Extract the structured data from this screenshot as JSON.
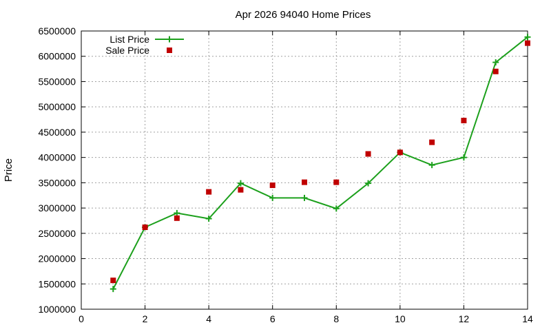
{
  "chart_data": {
    "type": "line",
    "title": "Apr 2026 94040 Home Prices",
    "xlabel": "",
    "ylabel": "Price",
    "xlim": [
      0,
      14
    ],
    "ylim": [
      1000000,
      6500000
    ],
    "x_ticks": [
      0,
      2,
      4,
      6,
      8,
      10,
      12,
      14
    ],
    "y_ticks": [
      1000000,
      1500000,
      2000000,
      2500000,
      3000000,
      3500000,
      4000000,
      4500000,
      5000000,
      5500000,
      6000000,
      6500000
    ],
    "grid": true,
    "legend_position": "top-left",
    "series": [
      {
        "name": "List Price",
        "style": "lines+points",
        "marker": "plus",
        "color": "#1ca01c",
        "x": [
          1,
          2,
          3,
          4,
          5,
          6,
          7,
          8,
          9,
          10,
          11,
          12,
          13,
          14
        ],
        "values": [
          1400000,
          2620000,
          2900000,
          2790000,
          3490000,
          3200000,
          3200000,
          2990000,
          3490000,
          4100000,
          3850000,
          4000000,
          5880000,
          6380000
        ]
      },
      {
        "name": "Sale Price",
        "style": "points",
        "marker": "square",
        "color": "#c00000",
        "x": [
          1,
          2,
          3,
          4,
          5,
          6,
          7,
          8,
          9,
          10,
          11,
          12,
          13,
          14
        ],
        "values": [
          1570000,
          2620000,
          2800000,
          3320000,
          3360000,
          3450000,
          3510000,
          3510000,
          4070000,
          4100000,
          4300000,
          4730000,
          5700000,
          6260000
        ]
      }
    ]
  }
}
